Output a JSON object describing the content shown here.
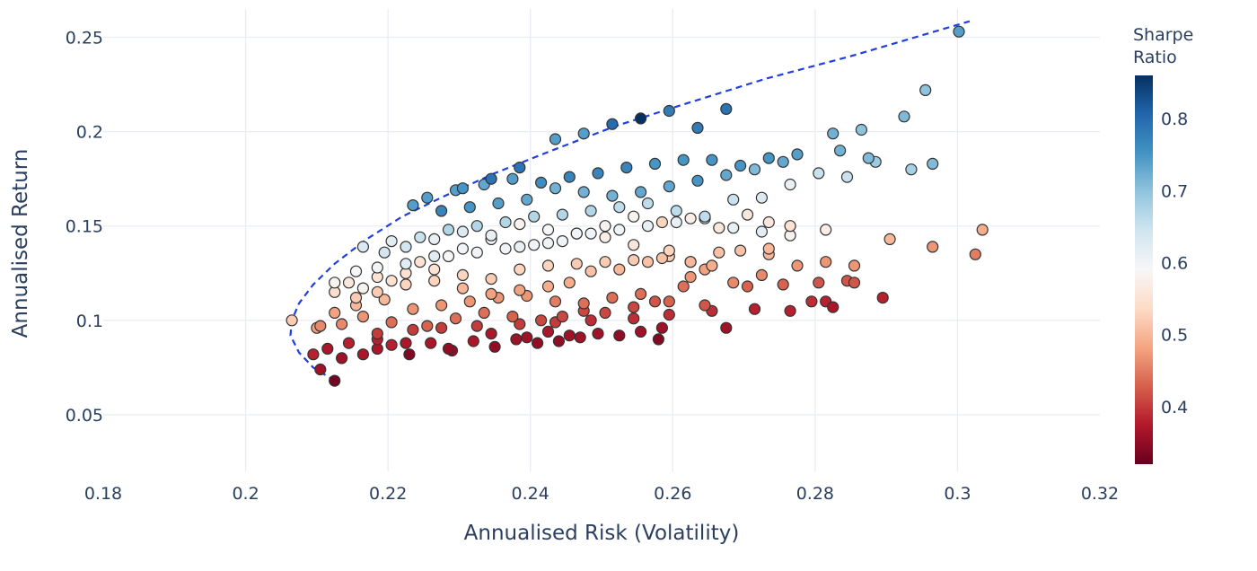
{
  "chart_data": {
    "type": "scatter",
    "xlabel": "Annualised Risk (Volatility)",
    "ylabel": "Annualised Return",
    "xlim": [
      0.18,
      0.32
    ],
    "ylim": [
      0.02,
      0.265
    ],
    "x_ticks": [
      0.18,
      0.2,
      0.22,
      0.24,
      0.26,
      0.28,
      0.3,
      0.32
    ],
    "x_tick_labels": [
      "0.18",
      "0.2",
      "0.22",
      "0.24",
      "0.26",
      "0.28",
      "0.3",
      "0.32"
    ],
    "y_ticks": [
      0.05,
      0.1,
      0.15,
      0.2,
      0.25
    ],
    "y_tick_labels": [
      "0.05",
      "0.1",
      "0.15",
      "0.2",
      "0.25"
    ],
    "grid": true,
    "colorbar": {
      "title": [
        "Sharpe",
        "Ratio"
      ],
      "range": [
        0.32,
        0.86
      ],
      "ticks": [
        0.4,
        0.5,
        0.6,
        0.7,
        0.8
      ],
      "tick_labels": [
        "0.4",
        "0.5",
        "0.6",
        "0.7",
        "0.8"
      ],
      "colorscale": [
        "#67001f",
        "#b2182b",
        "#d6604d",
        "#f4a582",
        "#fddbc7",
        "#f7f7f7",
        "#d1e5f0",
        "#92c5de",
        "#4393c3",
        "#2166ac",
        "#053061"
      ]
    },
    "frontier": {
      "style": "dashed",
      "color": "#1f3fe0",
      "x": [
        0.2125,
        0.2095,
        0.2075,
        0.2063,
        0.2065,
        0.2075,
        0.2095,
        0.2125,
        0.217,
        0.222,
        0.228,
        0.235,
        0.243,
        0.252,
        0.262,
        0.273,
        0.285,
        0.3017
      ],
      "y": [
        0.068,
        0.075,
        0.083,
        0.092,
        0.1,
        0.109,
        0.119,
        0.13,
        0.143,
        0.155,
        0.166,
        0.178,
        0.19,
        0.203,
        0.215,
        0.228,
        0.24,
        0.2585
      ]
    },
    "series": [
      {
        "x": [
          0.2125,
          0.2105,
          0.2065,
          0.2095,
          0.21,
          0.2135,
          0.2165,
          0.2185,
          0.2205,
          0.223,
          0.226,
          0.229,
          0.232,
          0.235,
          0.238,
          0.241,
          0.244,
          0.247,
          0.2495,
          0.2525,
          0.2555,
          0.258,
          0.2585,
          0.2675,
          0.2455,
          0.2425,
          0.2395,
          0.2345,
          0.2285,
          0.2225,
          0.2185,
          0.2145,
          0.2115,
          0.2185,
          0.2235,
          0.2275,
          0.2325,
          0.2385,
          0.2435,
          0.2485,
          0.2545,
          0.2595,
          0.2655,
          0.2715,
          0.2765,
          0.2795,
          0.2815,
          0.2825,
          0.2895,
          0.2705,
          0.2755,
          0.2805,
          0.2845,
          0.2855,
          0.2645,
          0.2625,
          0.2615,
          0.2575,
          0.2545,
          0.2505,
          0.2475,
          0.2445,
          0.2415,
          0.2375,
          0.2335,
          0.2295,
          0.2255,
          0.2205,
          0.2165,
          0.2135,
          0.2105,
          0.2125,
          0.2155,
          0.2195,
          0.2235,
          0.2275,
          0.2315,
          0.2355,
          0.2395,
          0.2435,
          0.2475,
          0.2515,
          0.2555,
          0.2595,
          0.2645,
          0.2685,
          0.2725,
          0.2855,
          0.2905,
          0.2965,
          0.3035,
          0.3025,
          0.2735,
          0.2625,
          0.2655,
          0.2595,
          0.2565,
          0.2525,
          0.2485,
          0.2455,
          0.2425,
          0.2385,
          0.2345,
          0.2305,
          0.2265,
          0.2225,
          0.2185,
          0.2155,
          0.2125,
          0.2145,
          0.2185,
          0.2225,
          0.2265,
          0.2305,
          0.2345,
          0.2385,
          0.2425,
          0.2465,
          0.2505,
          0.2545,
          0.2585,
          0.2625,
          0.2665,
          0.2695,
          0.2735,
          0.2775,
          0.2815,
          0.2595,
          0.2545,
          0.2505,
          0.2465,
          0.2425,
          0.2385,
          0.2345,
          0.2305,
          0.2265,
          0.2225,
          0.2185,
          0.2155,
          0.2125,
          0.2165,
          0.2205,
          0.2245,
          0.2285,
          0.2325,
          0.2365,
          0.2405,
          0.2445,
          0.2485,
          0.2525,
          0.2565,
          0.2605,
          0.2645,
          0.2685,
          0.2725,
          0.2765,
          0.2815,
          0.2765,
          0.2735,
          0.2705,
          0.2665,
          0.2625,
          0.2585,
          0.2545,
          0.2505,
          0.2465,
          0.2425,
          0.2385,
          0.2345,
          0.2305,
          0.2265,
          0.2225,
          0.2195,
          0.2165,
          0.2205,
          0.2245,
          0.2285,
          0.2325,
          0.2365,
          0.2405,
          0.2445,
          0.2485,
          0.2525,
          0.2565,
          0.2605,
          0.2645,
          0.2685,
          0.2725,
          0.2765,
          0.2805,
          0.2845,
          0.2885,
          0.2965,
          0.2935,
          0.2875,
          0.2835,
          0.2755,
          0.2715,
          0.2675,
          0.2635,
          0.2595,
          0.2555,
          0.2515,
          0.2475,
          0.2435,
          0.2395,
          0.2355,
          0.2315,
          0.2275,
          0.2235,
          0.2255,
          0.2295,
          0.2335,
          0.2375,
          0.2415,
          0.2455,
          0.2495,
          0.2535,
          0.2575,
          0.2615,
          0.2655,
          0.2695,
          0.2735,
          0.2775,
          0.2825,
          0.2865,
          0.2925,
          0.2955,
          0.3002,
          0.2435,
          0.2475,
          0.2515,
          0.2555,
          0.2595,
          0.2635,
          0.2675,
          0.2385,
          0.2345,
          0.2305
        ],
        "y": [
          0.068,
          0.074,
          0.1,
          0.082,
          0.096,
          0.08,
          0.082,
          0.085,
          0.087,
          0.082,
          0.088,
          0.084,
          0.089,
          0.086,
          0.09,
          0.088,
          0.089,
          0.091,
          0.093,
          0.092,
          0.094,
          0.09,
          0.096,
          0.096,
          0.092,
          0.094,
          0.091,
          0.093,
          0.085,
          0.088,
          0.09,
          0.088,
          0.085,
          0.093,
          0.095,
          0.096,
          0.097,
          0.098,
          0.099,
          0.1,
          0.101,
          0.103,
          0.105,
          0.106,
          0.105,
          0.11,
          0.11,
          0.107,
          0.112,
          0.118,
          0.119,
          0.12,
          0.121,
          0.12,
          0.127,
          0.131,
          0.118,
          0.11,
          0.107,
          0.104,
          0.105,
          0.102,
          0.1,
          0.102,
          0.104,
          0.101,
          0.097,
          0.099,
          0.102,
          0.098,
          0.097,
          0.104,
          0.108,
          0.111,
          0.106,
          0.108,
          0.11,
          0.112,
          0.113,
          0.11,
          0.109,
          0.112,
          0.114,
          0.11,
          0.108,
          0.12,
          0.124,
          0.129,
          0.143,
          0.139,
          0.148,
          0.135,
          0.135,
          0.123,
          0.129,
          0.134,
          0.131,
          0.127,
          0.126,
          0.12,
          0.118,
          0.116,
          0.114,
          0.117,
          0.121,
          0.119,
          0.115,
          0.112,
          0.115,
          0.12,
          0.123,
          0.125,
          0.127,
          0.124,
          0.122,
          0.127,
          0.129,
          0.13,
          0.131,
          0.132,
          0.133,
          0.131,
          0.136,
          0.137,
          0.138,
          0.129,
          0.131,
          0.137,
          0.14,
          0.144,
          0.146,
          0.141,
          0.139,
          0.143,
          0.138,
          0.134,
          0.13,
          0.128,
          0.126,
          0.12,
          0.117,
          0.121,
          0.131,
          0.134,
          0.136,
          0.138,
          0.14,
          0.142,
          0.146,
          0.148,
          0.15,
          0.152,
          0.154,
          0.149,
          0.147,
          0.145,
          0.148,
          0.15,
          0.152,
          0.156,
          0.149,
          0.154,
          0.152,
          0.155,
          0.15,
          0.146,
          0.148,
          0.151,
          0.145,
          0.147,
          0.143,
          0.139,
          0.136,
          0.139,
          0.142,
          0.144,
          0.148,
          0.15,
          0.152,
          0.155,
          0.156,
          0.158,
          0.16,
          0.162,
          0.158,
          0.155,
          0.164,
          0.165,
          0.172,
          0.178,
          0.176,
          0.184,
          0.183,
          0.18,
          0.186,
          0.19,
          0.184,
          0.18,
          0.177,
          0.174,
          0.171,
          0.168,
          0.166,
          0.168,
          0.17,
          0.164,
          0.162,
          0.16,
          0.158,
          0.161,
          0.165,
          0.169,
          0.172,
          0.175,
          0.173,
          0.176,
          0.178,
          0.181,
          0.183,
          0.185,
          0.185,
          0.182,
          0.186,
          0.188,
          0.199,
          0.201,
          0.208,
          0.222,
          0.253,
          0.196,
          0.199,
          0.204,
          0.207,
          0.211,
          0.202,
          0.212,
          0.181,
          0.175,
          0.17
        ],
        "sharpe": [
          0.33,
          0.36,
          0.52,
          0.38,
          0.48,
          0.36,
          0.37,
          0.37,
          0.38,
          0.34,
          0.37,
          0.35,
          0.37,
          0.35,
          0.36,
          0.35,
          0.35,
          0.36,
          0.36,
          0.35,
          0.36,
          0.34,
          0.36,
          0.36,
          0.36,
          0.37,
          0.36,
          0.37,
          0.35,
          0.37,
          0.38,
          0.38,
          0.37,
          0.4,
          0.4,
          0.4,
          0.4,
          0.4,
          0.4,
          0.39,
          0.39,
          0.39,
          0.39,
          0.38,
          0.38,
          0.39,
          0.38,
          0.37,
          0.38,
          0.43,
          0.43,
          0.42,
          0.42,
          0.42,
          0.48,
          0.49,
          0.44,
          0.42,
          0.41,
          0.41,
          0.41,
          0.41,
          0.41,
          0.43,
          0.44,
          0.44,
          0.43,
          0.44,
          0.47,
          0.46,
          0.46,
          0.48,
          0.5,
          0.5,
          0.47,
          0.47,
          0.47,
          0.47,
          0.47,
          0.45,
          0.44,
          0.44,
          0.44,
          0.43,
          0.42,
          0.46,
          0.46,
          0.47,
          0.5,
          0.47,
          0.49,
          0.45,
          0.5,
          0.47,
          0.49,
          0.52,
          0.51,
          0.5,
          0.51,
          0.49,
          0.49,
          0.48,
          0.48,
          0.5,
          0.53,
          0.53,
          0.52,
          0.52,
          0.54,
          0.56,
          0.55,
          0.55,
          0.55,
          0.53,
          0.52,
          0.53,
          0.53,
          0.52,
          0.52,
          0.52,
          0.51,
          0.5,
          0.51,
          0.51,
          0.5,
          0.47,
          0.47,
          0.53,
          0.56,
          0.57,
          0.58,
          0.6,
          0.61,
          0.6,
          0.6,
          0.62,
          0.62,
          0.6,
          0.59,
          0.58,
          0.58,
          0.55,
          0.55,
          0.59,
          0.6,
          0.6,
          0.6,
          0.6,
          0.6,
          0.6,
          0.61,
          0.61,
          0.61,
          0.61,
          0.62,
          0.58,
          0.57,
          0.55,
          0.56,
          0.56,
          0.56,
          0.57,
          0.53,
          0.58,
          0.58,
          0.6,
          0.59,
          0.58,
          0.61,
          0.63,
          0.61,
          0.64,
          0.64,
          0.63,
          0.62,
          0.65,
          0.67,
          0.67,
          0.67,
          0.67,
          0.67,
          0.67,
          0.66,
          0.66,
          0.66,
          0.66,
          0.65,
          0.63,
          0.61,
          0.65,
          0.65,
          0.69,
          0.71,
          0.68,
          0.71,
          0.72,
          0.73,
          0.71,
          0.73,
          0.75,
          0.73,
          0.73,
          0.72,
          0.72,
          0.72,
          0.73,
          0.74,
          0.75,
          0.77,
          0.74,
          0.74,
          0.74,
          0.73,
          0.74,
          0.76,
          0.77,
          0.77,
          0.77,
          0.75,
          0.75,
          0.75,
          0.75,
          0.75,
          0.74,
          0.72,
          0.7,
          0.71,
          0.7,
          0.74,
          0.74,
          0.74,
          0.8,
          0.86,
          0.78,
          0.78,
          0.79,
          0.79,
          0.79,
          0.75,
          0.8,
          0.72,
          0.71,
          0.71
        ]
      }
    ]
  }
}
